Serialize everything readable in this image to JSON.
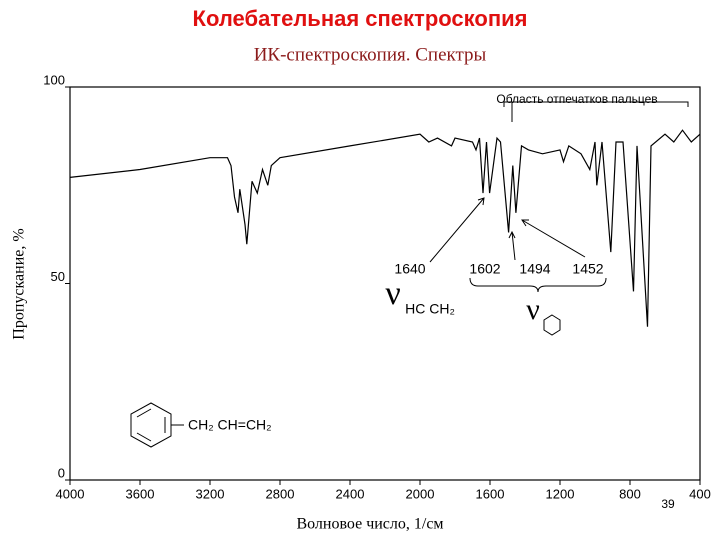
{
  "chart_data": {
    "type": "line",
    "title": "Колебательная спектроскопия",
    "subtitle": "ИК-спектроскопия. Спектры",
    "x_label": "Волновое число, 1/см",
    "y_label": "Пропускание, %",
    "xlim": [
      4000,
      400
    ],
    "ylim": [
      0,
      100
    ],
    "xticks": [
      4000,
      3600,
      3200,
      2800,
      2400,
      2000,
      1600,
      1200,
      800,
      400
    ],
    "yticks": [
      0,
      50,
      100
    ],
    "series": [
      {
        "color": "#000000",
        "x": [
          4000,
          3600,
          3200,
          3100,
          3080,
          3060,
          3040,
          3030,
          3000,
          2990,
          2960,
          2930,
          2900,
          2870,
          2850,
          2800,
          2400,
          2000,
          1950,
          1900,
          1820,
          1800,
          1700,
          1680,
          1660,
          1640,
          1620,
          1602,
          1560,
          1540,
          1494,
          1470,
          1452,
          1420,
          1380,
          1300,
          1200,
          1180,
          1150,
          1080,
          1030,
          1000,
          990,
          960,
          910,
          880,
          840,
          780,
          760,
          700,
          680,
          600,
          550,
          500,
          450,
          400
        ],
        "values": [
          77,
          79,
          82,
          82,
          80,
          72,
          68,
          74,
          65,
          60,
          76,
          73,
          79,
          75,
          80,
          82,
          85,
          88,
          86,
          87,
          85,
          87,
          86,
          84,
          87,
          73,
          86,
          73,
          87,
          86,
          63,
          80,
          68,
          85,
          84,
          83,
          84,
          81,
          85,
          83,
          79,
          86,
          75,
          86,
          58,
          86,
          86,
          48,
          85,
          39,
          85,
          88,
          86,
          89,
          86,
          88
        ]
      }
    ],
    "annotations": [
      "Область отпечатков пальцев",
      "1640",
      "1602",
      "1494",
      "1452",
      "ν",
      "HC  CH₂",
      "ν",
      "CH₂  CH=CH₂",
      "39"
    ]
  }
}
